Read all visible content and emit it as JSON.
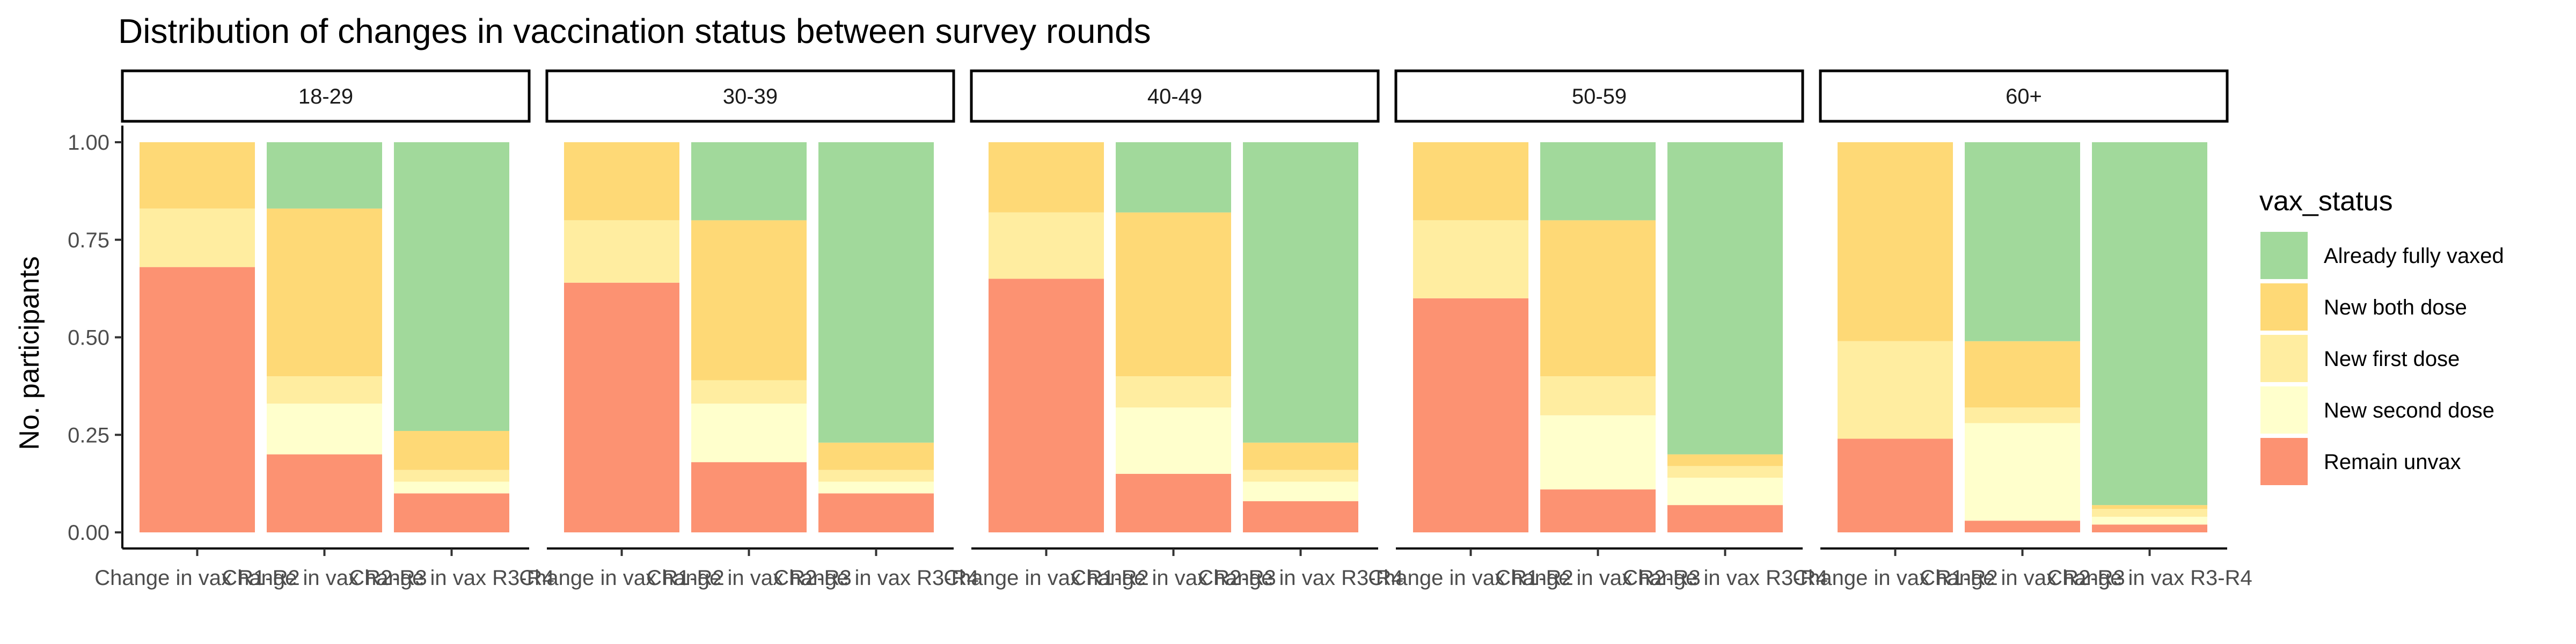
{
  "chart_data": {
    "type": "bar",
    "stacked": true,
    "faceted": true,
    "title": "Distribution of changes in vaccination status between survey rounds",
    "ylabel": "No. participants",
    "xlabel": "",
    "ylim": [
      0,
      1
    ],
    "yticks": [
      "0.00",
      "0.25",
      "0.50",
      "0.75",
      "1.00"
    ],
    "grid": false,
    "legend_position": "right",
    "legend_title": "vax_status",
    "categories": [
      "Change in vax R1-R2",
      "Change in vax R2-R3",
      "Change in vax R3-R4"
    ],
    "stack_order_bottom_to_top": [
      "Remain unvax",
      "New second dose",
      "New first dose",
      "New both dose",
      "Already fully vaxed"
    ],
    "legend_order": [
      "Already fully vaxed",
      "New both dose",
      "New first dose",
      "New second dose",
      "Remain unvax"
    ],
    "colors": {
      "Already fully vaxed": "#a1d99b",
      "New both dose": "#fed976",
      "New first dose": "#ffeda0",
      "New second dose": "#ffffcc",
      "Remain unvax": "#fc9272"
    },
    "panels": [
      {
        "facet": "18-29",
        "bars": [
          {
            "Remain unvax": 0.68,
            "New second dose": 0.0,
            "New first dose": 0.15,
            "New both dose": 0.17,
            "Already fully vaxed": 0.0
          },
          {
            "Remain unvax": 0.2,
            "New second dose": 0.13,
            "New first dose": 0.07,
            "New both dose": 0.43,
            "Already fully vaxed": 0.17
          },
          {
            "Remain unvax": 0.1,
            "New second dose": 0.03,
            "New first dose": 0.03,
            "New both dose": 0.1,
            "Already fully vaxed": 0.74
          }
        ]
      },
      {
        "facet": "30-39",
        "bars": [
          {
            "Remain unvax": 0.64,
            "New second dose": 0.0,
            "New first dose": 0.16,
            "New both dose": 0.2,
            "Already fully vaxed": 0.0
          },
          {
            "Remain unvax": 0.18,
            "New second dose": 0.15,
            "New first dose": 0.06,
            "New both dose": 0.41,
            "Already fully vaxed": 0.2
          },
          {
            "Remain unvax": 0.1,
            "New second dose": 0.03,
            "New first dose": 0.03,
            "New both dose": 0.07,
            "Already fully vaxed": 0.77
          }
        ]
      },
      {
        "facet": "40-49",
        "bars": [
          {
            "Remain unvax": 0.65,
            "New second dose": 0.0,
            "New first dose": 0.17,
            "New both dose": 0.18,
            "Already fully vaxed": 0.0
          },
          {
            "Remain unvax": 0.15,
            "New second dose": 0.17,
            "New first dose": 0.08,
            "New both dose": 0.42,
            "Already fully vaxed": 0.18
          },
          {
            "Remain unvax": 0.08,
            "New second dose": 0.05,
            "New first dose": 0.03,
            "New both dose": 0.07,
            "Already fully vaxed": 0.77
          }
        ]
      },
      {
        "facet": "50-59",
        "bars": [
          {
            "Remain unvax": 0.6,
            "New second dose": 0.0,
            "New first dose": 0.2,
            "New both dose": 0.2,
            "Already fully vaxed": 0.0
          },
          {
            "Remain unvax": 0.11,
            "New second dose": 0.19,
            "New first dose": 0.1,
            "New both dose": 0.4,
            "Already fully vaxed": 0.2
          },
          {
            "Remain unvax": 0.07,
            "New second dose": 0.07,
            "New first dose": 0.03,
            "New both dose": 0.03,
            "Already fully vaxed": 0.8
          }
        ]
      },
      {
        "facet": "60+",
        "bars": [
          {
            "Remain unvax": 0.24,
            "New second dose": 0.0,
            "New first dose": 0.25,
            "New both dose": 0.51,
            "Already fully vaxed": 0.0
          },
          {
            "Remain unvax": 0.03,
            "New second dose": 0.25,
            "New first dose": 0.04,
            "New both dose": 0.17,
            "Already fully vaxed": 0.51
          },
          {
            "Remain unvax": 0.02,
            "New second dose": 0.02,
            "New first dose": 0.02,
            "New both dose": 0.01,
            "Already fully vaxed": 0.93
          }
        ]
      }
    ]
  }
}
